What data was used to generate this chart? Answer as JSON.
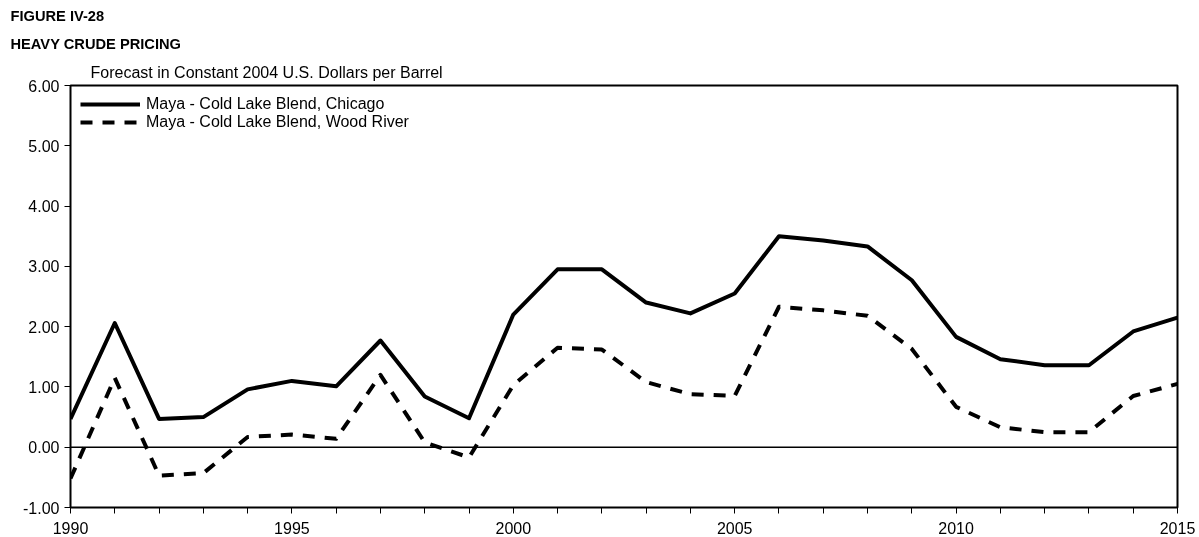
{
  "chart_data": {
    "type": "line",
    "title": "FIGURE IV-28",
    "subtitle": "HEAVY CRUDE PRICING",
    "ylabel": "Forecast in Constant 2004 U.S. Dollars per Barrel",
    "x": [
      1990,
      1991,
      1992,
      1993,
      1994,
      1995,
      1996,
      1997,
      1998,
      1999,
      2000,
      2001,
      2002,
      2003,
      2004,
      2005,
      2006,
      2007,
      2008,
      2009,
      2010,
      2011,
      2012,
      2013,
      2014,
      2015
    ],
    "series": [
      {
        "name": "Maya - Cold Lake Blend, Chicago",
        "color": "#000000",
        "line_style": "solid",
        "values": [
          0.47,
          2.06,
          0.47,
          0.5,
          0.96,
          1.1,
          1.01,
          1.77,
          0.84,
          0.48,
          2.2,
          2.95,
          2.95,
          2.4,
          2.22,
          2.55,
          3.5,
          3.43,
          3.33,
          2.77,
          1.83,
          1.46,
          1.36,
          1.36,
          1.92,
          2.15
        ]
      },
      {
        "name": "Maya - Cold Lake Blend, Wood River",
        "color": "#000000",
        "line_style": "dashed",
        "values": [
          -0.52,
          1.15,
          -0.47,
          -0.43,
          0.17,
          0.21,
          0.14,
          1.2,
          0.08,
          -0.17,
          1.03,
          1.65,
          1.62,
          1.08,
          0.88,
          0.85,
          2.33,
          2.27,
          2.18,
          1.63,
          0.67,
          0.33,
          0.25,
          0.25,
          0.85,
          1.05
        ]
      }
    ],
    "xlim": [
      1990,
      2015
    ],
    "xticks": [
      1990,
      {
        "value": 1991,
        "label": null
      },
      {
        "value": 1992,
        "label": null
      },
      {
        "value": 1993,
        "label": null
      },
      {
        "value": 1994,
        "label": null
      },
      1995,
      {
        "value": 1996,
        "label": null
      },
      {
        "value": 1997,
        "label": null
      },
      {
        "value": 1998,
        "label": null
      },
      {
        "value": 1999,
        "label": null
      },
      2000,
      {
        "value": 2001,
        "label": null
      },
      {
        "value": 2002,
        "label": null
      },
      {
        "value": 2003,
        "label": null
      },
      {
        "value": 2004,
        "label": null
      },
      2005,
      {
        "value": 2006,
        "label": null
      },
      {
        "value": 2007,
        "label": null
      },
      {
        "value": 2008,
        "label": null
      },
      {
        "value": 2009,
        "label": null
      },
      2010,
      {
        "value": 2011,
        "label": null
      },
      {
        "value": 2012,
        "label": null
      },
      {
        "value": 2013,
        "label": null
      },
      {
        "value": 2014,
        "label": null
      },
      2015
    ],
    "ylim": [
      -1,
      6
    ],
    "yticks": [
      {
        "value": -1,
        "label": "-1.00"
      },
      {
        "value": 0,
        "label": "0.00"
      },
      {
        "value": 1,
        "label": "1.00"
      },
      {
        "value": 2,
        "label": "2.00"
      },
      {
        "value": 3,
        "label": "3.00"
      },
      {
        "value": 4,
        "label": "4.00"
      },
      {
        "value": 5,
        "label": "5.00"
      },
      {
        "value": 6,
        "label": "6.00"
      }
    ],
    "ref_lines": [
      {
        "axis": "y",
        "value": 0,
        "color": "#000000"
      }
    ],
    "grid": false,
    "legend": "top left",
    "marker": "none"
  }
}
